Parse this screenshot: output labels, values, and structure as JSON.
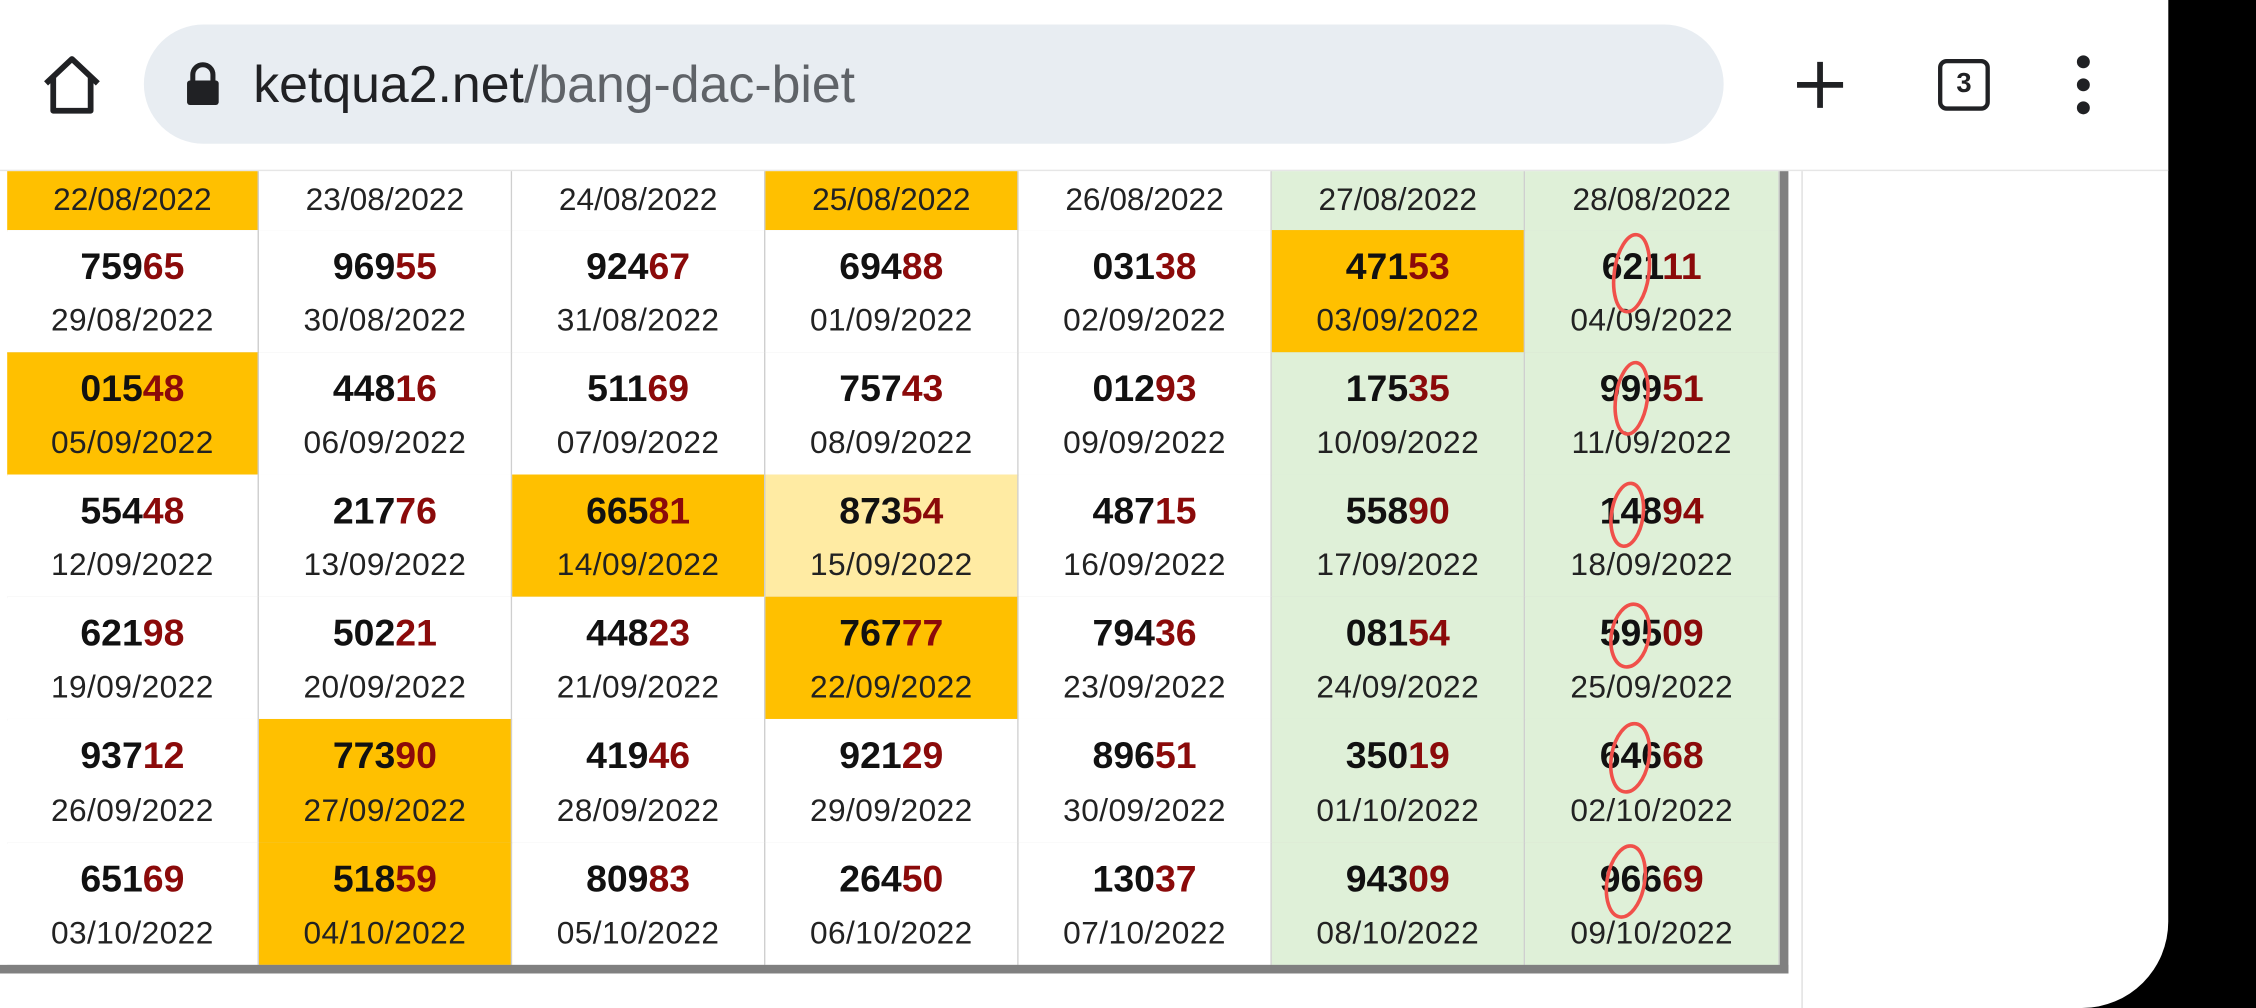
{
  "browser": {
    "url_host": "ketqua2.net",
    "url_path": "/bang-dac-biet",
    "tab_count": "3"
  },
  "table": {
    "header_dates": [
      {
        "date": "22/08/2022",
        "color": "#ffc000"
      },
      {
        "date": "23/08/2022",
        "color": "#ffffff"
      },
      {
        "date": "24/08/2022",
        "color": "#ffffff"
      },
      {
        "date": "25/08/2022",
        "color": "#ffc000"
      },
      {
        "date": "26/08/2022",
        "color": "#ffffff"
      },
      {
        "date": "27/08/2022",
        "color": "#dff0d8"
      },
      {
        "date": "28/08/2022",
        "color": "#dff0d8"
      }
    ],
    "rows": [
      [
        {
          "prefix": "759",
          "suffix": "65",
          "date": "29/08/2022",
          "color": "#ffffff"
        },
        {
          "prefix": "969",
          "suffix": "55",
          "date": "30/08/2022",
          "color": "#ffffff"
        },
        {
          "prefix": "924",
          "suffix": "67",
          "date": "31/08/2022",
          "color": "#ffffff"
        },
        {
          "prefix": "694",
          "suffix": "88",
          "date": "01/09/2022",
          "color": "#ffffff"
        },
        {
          "prefix": "031",
          "suffix": "38",
          "date": "02/09/2022",
          "color": "#ffffff"
        },
        {
          "prefix": "471",
          "suffix": "53",
          "date": "03/09/2022",
          "color": "#ffc000"
        },
        {
          "prefix": "621",
          "suffix": "11",
          "date": "04/09/2022",
          "color": "#dff0d8"
        }
      ],
      [
        {
          "prefix": "015",
          "suffix": "48",
          "date": "05/09/2022",
          "color": "#ffc000"
        },
        {
          "prefix": "448",
          "suffix": "16",
          "date": "06/09/2022",
          "color": "#ffffff"
        },
        {
          "prefix": "511",
          "suffix": "69",
          "date": "07/09/2022",
          "color": "#ffffff"
        },
        {
          "prefix": "757",
          "suffix": "43",
          "date": "08/09/2022",
          "color": "#ffffff"
        },
        {
          "prefix": "012",
          "suffix": "93",
          "date": "09/09/2022",
          "color": "#ffffff"
        },
        {
          "prefix": "175",
          "suffix": "35",
          "date": "10/09/2022",
          "color": "#dff0d8"
        },
        {
          "prefix": "999",
          "suffix": "51",
          "date": "11/09/2022",
          "color": "#dff0d8"
        }
      ],
      [
        {
          "prefix": "554",
          "suffix": "48",
          "date": "12/09/2022",
          "color": "#ffffff"
        },
        {
          "prefix": "217",
          "suffix": "76",
          "date": "13/09/2022",
          "color": "#ffffff"
        },
        {
          "prefix": "665",
          "suffix": "81",
          "date": "14/09/2022",
          "color": "#ffc000"
        },
        {
          "prefix": "873",
          "suffix": "54",
          "date": "15/09/2022",
          "color": "#ffeba3"
        },
        {
          "prefix": "487",
          "suffix": "15",
          "date": "16/09/2022",
          "color": "#ffffff"
        },
        {
          "prefix": "558",
          "suffix": "90",
          "date": "17/09/2022",
          "color": "#dff0d8"
        },
        {
          "prefix": "148",
          "suffix": "94",
          "date": "18/09/2022",
          "color": "#dff0d8"
        }
      ],
      [
        {
          "prefix": "621",
          "suffix": "98",
          "date": "19/09/2022",
          "color": "#ffffff"
        },
        {
          "prefix": "502",
          "suffix": "21",
          "date": "20/09/2022",
          "color": "#ffffff"
        },
        {
          "prefix": "448",
          "suffix": "23",
          "date": "21/09/2022",
          "color": "#ffffff"
        },
        {
          "prefix": "767",
          "suffix": "77",
          "date": "22/09/2022",
          "color": "#ffc000"
        },
        {
          "prefix": "794",
          "suffix": "36",
          "date": "23/09/2022",
          "color": "#ffffff"
        },
        {
          "prefix": "081",
          "suffix": "54",
          "date": "24/09/2022",
          "color": "#dff0d8"
        },
        {
          "prefix": "595",
          "suffix": "09",
          "date": "25/09/2022",
          "color": "#dff0d8"
        }
      ],
      [
        {
          "prefix": "937",
          "suffix": "12",
          "date": "26/09/2022",
          "color": "#ffffff"
        },
        {
          "prefix": "773",
          "suffix": "90",
          "date": "27/09/2022",
          "color": "#ffc000"
        },
        {
          "prefix": "419",
          "suffix": "46",
          "date": "28/09/2022",
          "color": "#ffffff"
        },
        {
          "prefix": "921",
          "suffix": "29",
          "date": "29/09/2022",
          "color": "#ffffff"
        },
        {
          "prefix": "896",
          "suffix": "51",
          "date": "30/09/2022",
          "color": "#ffffff"
        },
        {
          "prefix": "350",
          "suffix": "19",
          "date": "01/10/2022",
          "color": "#dff0d8"
        },
        {
          "prefix": "646",
          "suffix": "68",
          "date": "02/10/2022",
          "color": "#dff0d8"
        }
      ],
      [
        {
          "prefix": "651",
          "suffix": "69",
          "date": "03/10/2022",
          "color": "#ffffff"
        },
        {
          "prefix": "518",
          "suffix": "59",
          "date": "04/10/2022",
          "color": "#ffc000"
        },
        {
          "prefix": "809",
          "suffix": "83",
          "date": "05/10/2022",
          "color": "#ffffff"
        },
        {
          "prefix": "264",
          "suffix": "50",
          "date": "06/10/2022",
          "color": "#ffffff"
        },
        {
          "prefix": "130",
          "suffix": "37",
          "date": "07/10/2022",
          "color": "#ffffff"
        },
        {
          "prefix": "943",
          "suffix": "09",
          "date": "08/10/2022",
          "color": "#dff0d8"
        },
        {
          "prefix": "966",
          "suffix": "69",
          "date": "09/10/2022",
          "color": "#dff0d8"
        }
      ]
    ]
  }
}
